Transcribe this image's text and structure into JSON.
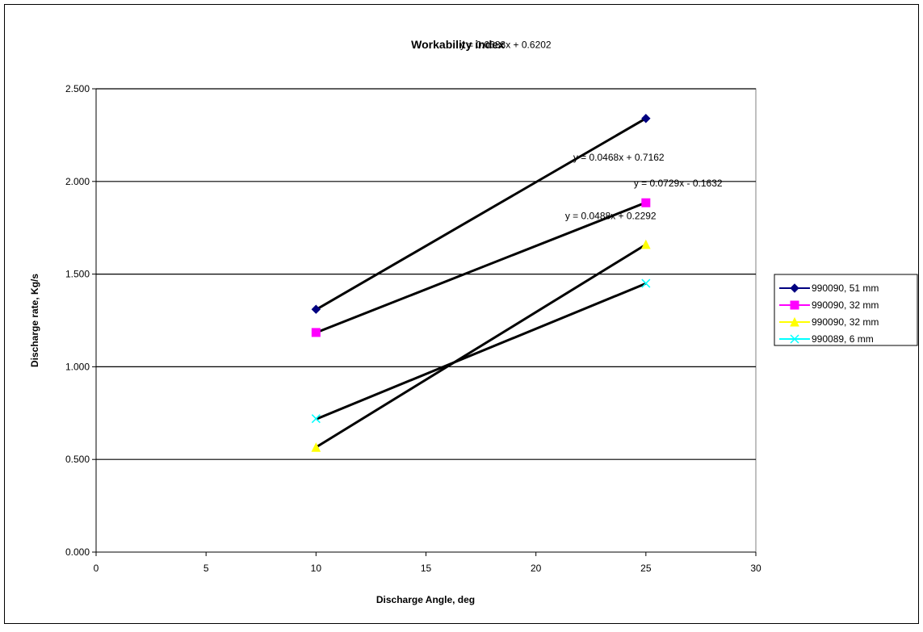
{
  "chart_data": {
    "type": "scatter",
    "title": "Workability index",
    "xlabel": "Discharge Angle, deg",
    "ylabel": "Discharge rate, Kg/s",
    "xlim": [
      0,
      30
    ],
    "ylim": [
      0,
      2.5
    ],
    "x_ticks": [
      "0",
      "5",
      "10",
      "15",
      "20",
      "25",
      "30"
    ],
    "y_ticks": [
      "0.000",
      "0.500",
      "1.000",
      "1.500",
      "2.000",
      "2.500"
    ],
    "grid": "horizontal",
    "legend_position": "right",
    "series": [
      {
        "name": "990090, 51 mm",
        "color": "#000080",
        "marker": "diamond",
        "points": [
          [
            10,
            1.31
          ],
          [
            25,
            2.34
          ]
        ],
        "trendline": {
          "slope": 0.0688,
          "intercept": 0.6202,
          "label": "y = 0.0688x + 0.6202"
        }
      },
      {
        "name": "990090, 32 mm",
        "color": "#ff00ff",
        "marker": "square",
        "points": [
          [
            10,
            1.185
          ],
          [
            25,
            1.885
          ]
        ],
        "trendline": {
          "slope": 0.0468,
          "intercept": 0.7162,
          "label": "y = 0.0468x + 0.7162"
        }
      },
      {
        "name": "990090, 32 mm",
        "color": "#ffff00",
        "marker": "triangle",
        "points": [
          [
            10,
            0.565
          ],
          [
            25,
            1.66
          ]
        ],
        "trendline": {
          "slope": 0.0729,
          "intercept": -0.1632,
          "label": "y = 0.0729x - 0.1632"
        }
      },
      {
        "name": "990089, 6 mm",
        "color": "#00ffff",
        "marker": "x",
        "points": [
          [
            10,
            0.72
          ],
          [
            25,
            1.45
          ]
        ],
        "trendline": {
          "slope": 0.0488,
          "intercept": 0.2292,
          "label": "y = 0.0488x + 0.2292"
        }
      }
    ]
  }
}
